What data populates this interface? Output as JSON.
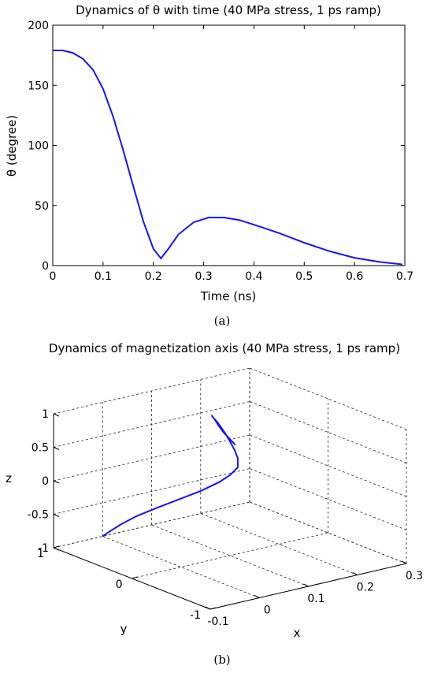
{
  "chart_data": [
    {
      "type": "line",
      "title": "Dynamics of θ with time (40 MPa stress, 1 ps ramp)",
      "xlabel": "Time (ns)",
      "ylabel": "θ (degree)",
      "xlim": [
        0,
        0.7
      ],
      "ylim": [
        0,
        200
      ],
      "xticks": [
        "0",
        "0.1",
        "0.2",
        "0.3",
        "0.4",
        "0.5",
        "0.6",
        "0.7"
      ],
      "yticks": [
        "0",
        "50",
        "100",
        "150",
        "200"
      ],
      "grid": false,
      "series": [
        {
          "color": "#1414ff",
          "x": [
            0,
            0.02,
            0.04,
            0.06,
            0.08,
            0.1,
            0.12,
            0.14,
            0.16,
            0.18,
            0.2,
            0.215,
            0.23,
            0.25,
            0.28,
            0.31,
            0.34,
            0.37,
            0.4,
            0.45,
            0.5,
            0.55,
            0.6,
            0.65,
            0.695
          ],
          "y": [
            179,
            179,
            177,
            172,
            163,
            147,
            124,
            96,
            66,
            37,
            14,
            6,
            14,
            26,
            36,
            40,
            40,
            38,
            34,
            27,
            19,
            12,
            6.5,
            3,
            1
          ]
        }
      ],
      "caption": "(a)"
    },
    {
      "type": "line3d",
      "title": "Dynamics of magnetization axis (40 MPa stress, 1 ps ramp)",
      "xlabel": "x",
      "ylabel": "y",
      "zlabel": "z",
      "xlim": [
        -0.1,
        0.3
      ],
      "ylim": [
        -1,
        1
      ],
      "zlim": [
        -1,
        1
      ],
      "xticks": [
        "-0.1",
        "0",
        "0.1",
        "0.2",
        "0.3"
      ],
      "yticks": [
        "-1",
        "0",
        "1"
      ],
      "zticks": [
        "-1",
        "-0.5",
        "0",
        "0.5",
        "1"
      ],
      "grid": true,
      "series": [
        {
          "color": "#1414ff",
          "x": [
            0.0,
            0.005,
            0.012,
            0.02,
            0.03,
            0.045,
            0.06,
            0.075,
            0.085,
            0.092,
            0.1,
            0.11,
            0.118,
            0.122,
            0.12,
            0.112,
            0.104,
            0.1,
            0.098,
            0.1,
            0.106,
            0.114
          ],
          "y": [
            1.0,
            0.95,
            0.85,
            0.7,
            0.5,
            0.3,
            0.12,
            -0.02,
            -0.1,
            -0.15,
            -0.1,
            0.0,
            0.1,
            0.2,
            0.28,
            0.3,
            0.26,
            0.2,
            0.13,
            0.08,
            0.05,
            0.02
          ],
          "z": [
            -1.0,
            -0.92,
            -0.78,
            -0.6,
            -0.4,
            -0.2,
            -0.02,
            0.15,
            0.28,
            0.4,
            0.5,
            0.55,
            0.6,
            0.7,
            0.82,
            0.92,
            0.97,
            0.95,
            0.88,
            0.8,
            0.72,
            0.62
          ]
        }
      ],
      "caption": "(b)"
    }
  ]
}
